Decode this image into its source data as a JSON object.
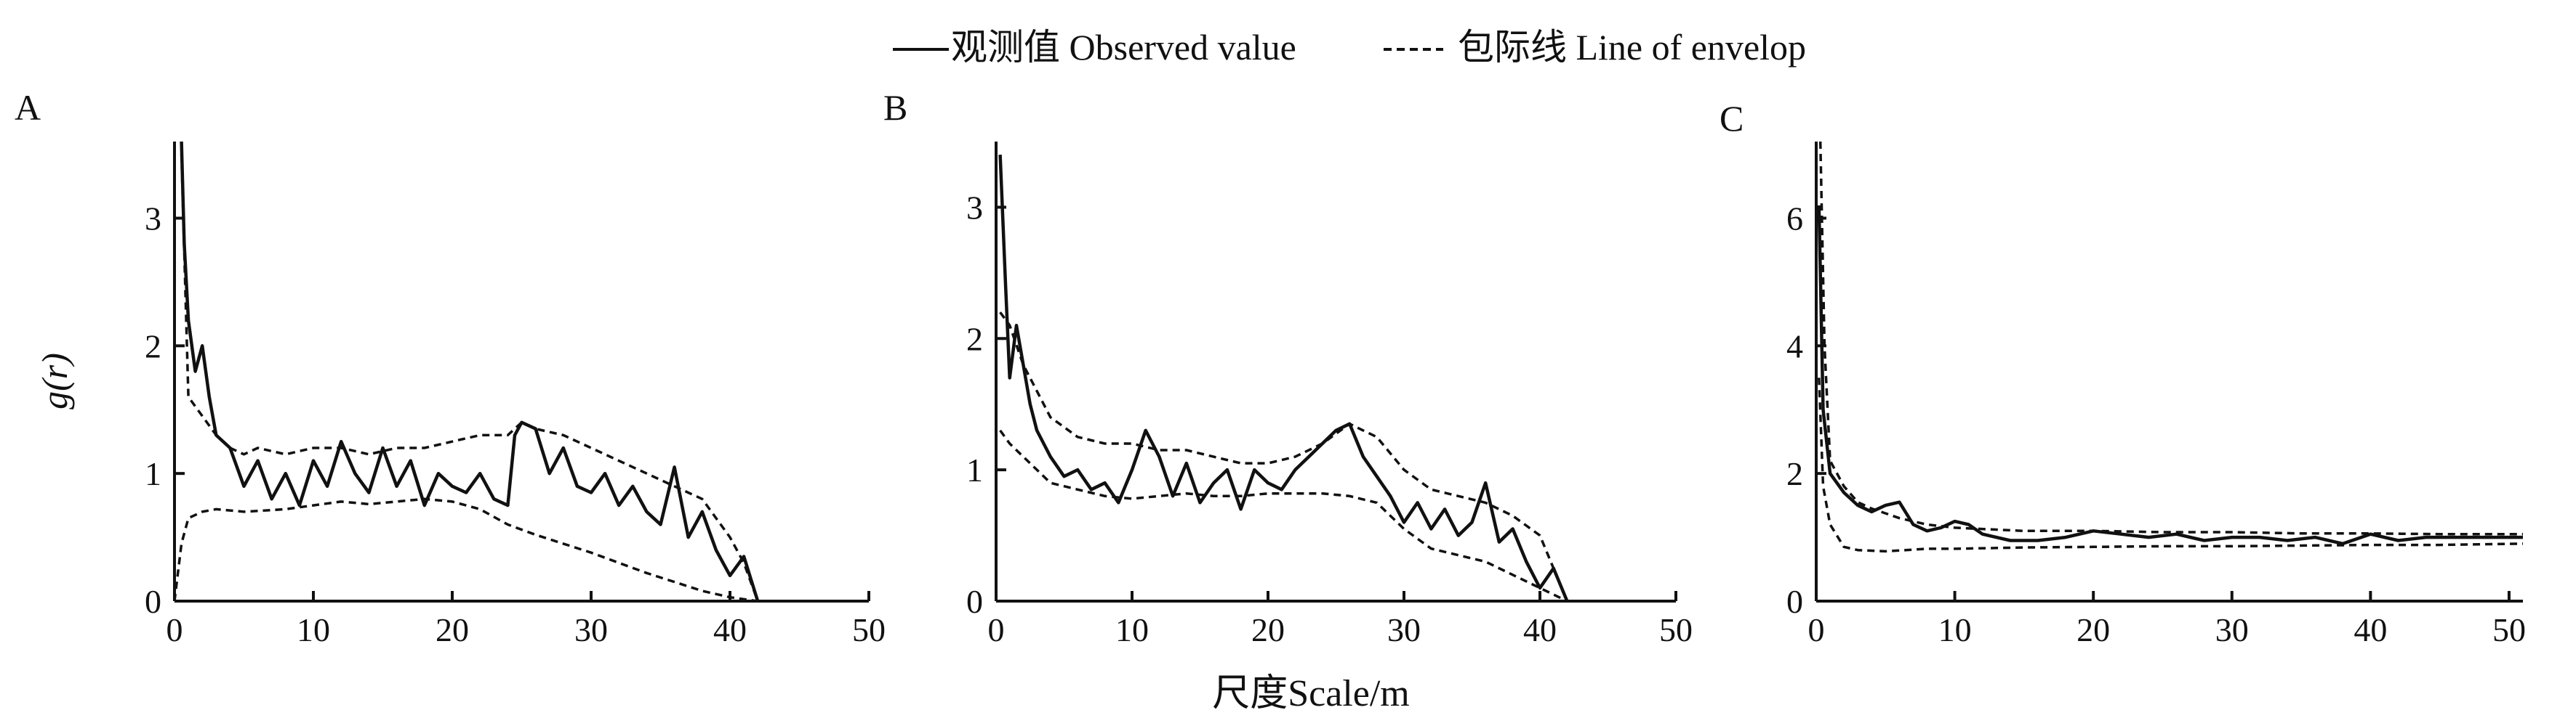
{
  "legend": {
    "observed_label": "观测值 Observed value",
    "envelope_label": "包际线 Line of envelop"
  },
  "ylabel": "g(r)",
  "xlabel": "尺度Scale/m",
  "colors": {
    "ink": "#111111",
    "background": "#ffffff"
  },
  "chart_data": [
    {
      "panel_label": "A",
      "type": "line",
      "xlim": [
        0,
        50
      ],
      "ylim": [
        0,
        3.6
      ],
      "xticks": [
        0,
        10,
        20,
        30,
        40,
        50
      ],
      "yticks": [
        0,
        1,
        2,
        3
      ],
      "series": [
        {
          "name": "观测值 Observed value",
          "style": "solid",
          "x": [
            0.5,
            0.7,
            1,
            1.5,
            2,
            2.5,
            3,
            4,
            5,
            6,
            7,
            8,
            9,
            10,
            11,
            12,
            13,
            14,
            15,
            16,
            17,
            18,
            19,
            20,
            21,
            22,
            23,
            24,
            24.5,
            25,
            26,
            27,
            28,
            29,
            30,
            31,
            32,
            33,
            34,
            35,
            36,
            37,
            38,
            39,
            40,
            41,
            42
          ],
          "y": [
            3.6,
            2.8,
            2.2,
            1.8,
            2.0,
            1.6,
            1.3,
            1.2,
            0.9,
            1.1,
            0.8,
            1.0,
            0.75,
            1.1,
            0.9,
            1.25,
            1.0,
            0.85,
            1.2,
            0.9,
            1.1,
            0.75,
            1.0,
            0.9,
            0.85,
            1.0,
            0.8,
            0.75,
            1.3,
            1.4,
            1.35,
            1.0,
            1.2,
            0.9,
            0.85,
            1.0,
            0.75,
            0.9,
            0.7,
            0.6,
            1.05,
            0.5,
            0.7,
            0.4,
            0.2,
            0.35,
            0.0
          ]
        },
        {
          "name": "包际线 Line of envelop",
          "style": "dashed",
          "x": [
            0.5,
            1,
            2,
            3,
            4,
            5,
            6,
            8,
            10,
            12,
            14,
            16,
            18,
            20,
            22,
            24,
            25,
            26,
            28,
            30,
            32,
            34,
            36,
            38,
            40,
            41,
            42
          ],
          "y": [
            3.5,
            1.6,
            1.45,
            1.3,
            1.2,
            1.15,
            1.2,
            1.15,
            1.2,
            1.2,
            1.15,
            1.2,
            1.2,
            1.25,
            1.3,
            1.3,
            1.4,
            1.35,
            1.3,
            1.2,
            1.1,
            1.0,
            0.9,
            0.8,
            0.5,
            0.3,
            0.0
          ]
        },
        {
          "name": "包际线 Line of envelop",
          "style": "dashed",
          "x": [
            0,
            0.5,
            1,
            2,
            3,
            5,
            8,
            10,
            12,
            14,
            16,
            18,
            20,
            22,
            24,
            26,
            28,
            30,
            32,
            34,
            36,
            38,
            40,
            42
          ],
          "y": [
            0.0,
            0.45,
            0.65,
            0.7,
            0.72,
            0.7,
            0.72,
            0.75,
            0.78,
            0.76,
            0.78,
            0.8,
            0.78,
            0.72,
            0.6,
            0.52,
            0.45,
            0.38,
            0.3,
            0.22,
            0.15,
            0.08,
            0.03,
            0.0
          ]
        }
      ]
    },
    {
      "panel_label": "B",
      "type": "line",
      "xlim": [
        0,
        50
      ],
      "ylim": [
        0,
        3.5
      ],
      "xticks": [
        0,
        10,
        20,
        30,
        40,
        50
      ],
      "yticks": [
        0,
        1,
        2,
        3
      ],
      "series": [
        {
          "name": "观测值 Observed value",
          "style": "solid",
          "x": [
            0.3,
            0.7,
            1,
            1.5,
            2,
            2.5,
            3,
            4,
            5,
            6,
            7,
            8,
            9,
            10,
            11,
            12,
            13,
            14,
            15,
            16,
            17,
            18,
            19,
            20,
            21,
            22,
            23,
            24,
            25,
            26,
            27,
            28,
            29,
            30,
            31,
            32,
            33,
            34,
            35,
            36,
            37,
            38,
            39,
            40,
            41,
            42
          ],
          "y": [
            3.4,
            2.4,
            1.7,
            2.1,
            1.8,
            1.5,
            1.3,
            1.1,
            0.95,
            1.0,
            0.85,
            0.9,
            0.75,
            1.0,
            1.3,
            1.1,
            0.8,
            1.05,
            0.75,
            0.9,
            1.0,
            0.7,
            1.0,
            0.9,
            0.85,
            1.0,
            1.1,
            1.2,
            1.3,
            1.35,
            1.1,
            0.95,
            0.8,
            0.6,
            0.75,
            0.55,
            0.7,
            0.5,
            0.6,
            0.9,
            0.45,
            0.55,
            0.3,
            0.1,
            0.25,
            0.0
          ]
        },
        {
          "name": "包际线 Line of envelop",
          "style": "dashed",
          "x": [
            0.3,
            1,
            2,
            3,
            4,
            6,
            8,
            10,
            12,
            14,
            16,
            18,
            20,
            22,
            24,
            26,
            27,
            28,
            30,
            32,
            34,
            36,
            38,
            40,
            42
          ],
          "y": [
            2.2,
            2.1,
            1.8,
            1.6,
            1.4,
            1.25,
            1.2,
            1.2,
            1.15,
            1.15,
            1.1,
            1.05,
            1.05,
            1.1,
            1.2,
            1.35,
            1.3,
            1.25,
            1.0,
            0.85,
            0.8,
            0.75,
            0.65,
            0.5,
            0.0
          ]
        },
        {
          "name": "包际线 Line of envelop",
          "style": "dashed",
          "x": [
            0.3,
            1,
            2,
            3,
            4,
            6,
            8,
            10,
            12,
            14,
            16,
            18,
            20,
            22,
            24,
            26,
            28,
            30,
            32,
            34,
            36,
            38,
            40,
            42
          ],
          "y": [
            1.3,
            1.2,
            1.1,
            1.0,
            0.9,
            0.85,
            0.8,
            0.78,
            0.8,
            0.82,
            0.8,
            0.8,
            0.82,
            0.82,
            0.82,
            0.8,
            0.75,
            0.55,
            0.4,
            0.35,
            0.3,
            0.2,
            0.1,
            0.0
          ]
        }
      ]
    },
    {
      "panel_label": "C",
      "type": "line",
      "xlim": [
        0,
        51
      ],
      "ylim": [
        0,
        7.2
      ],
      "xticks": [
        0,
        10,
        20,
        30,
        40,
        50
      ],
      "yticks": [
        0,
        2,
        4,
        6
      ],
      "series": [
        {
          "name": "观测值 Observed value",
          "style": "solid",
          "x": [
            0.2,
            0.5,
            1,
            2,
            3,
            4,
            5,
            6,
            7,
            8,
            9,
            10,
            11,
            12,
            14,
            16,
            18,
            20,
            22,
            24,
            26,
            28,
            30,
            32,
            34,
            36,
            38,
            40,
            42,
            44,
            46,
            48,
            50,
            51
          ],
          "y": [
            6.2,
            3.0,
            2.0,
            1.7,
            1.5,
            1.4,
            1.5,
            1.55,
            1.2,
            1.1,
            1.15,
            1.25,
            1.2,
            1.05,
            0.95,
            0.95,
            1.0,
            1.1,
            1.05,
            1.0,
            1.05,
            0.95,
            1.0,
            1.0,
            0.95,
            1.0,
            0.9,
            1.05,
            0.95,
            1.0,
            1.0,
            1.0,
            1.0,
            1.0
          ]
        },
        {
          "name": "包际线 Line of envelop",
          "style": "dashed",
          "x": [
            0.3,
            0.6,
            1,
            2,
            3,
            4,
            6,
            8,
            10,
            15,
            20,
            25,
            30,
            35,
            40,
            45,
            51
          ],
          "y": [
            7.2,
            4.0,
            2.2,
            1.8,
            1.55,
            1.45,
            1.3,
            1.2,
            1.15,
            1.1,
            1.1,
            1.08,
            1.08,
            1.06,
            1.06,
            1.05,
            1.05
          ]
        },
        {
          "name": "包际线 Line of envelop",
          "style": "dashed",
          "x": [
            0.2,
            0.5,
            1,
            2,
            3,
            5,
            8,
            10,
            15,
            20,
            25,
            30,
            35,
            40,
            45,
            51
          ],
          "y": [
            3.5,
            1.8,
            1.2,
            0.85,
            0.8,
            0.78,
            0.82,
            0.82,
            0.84,
            0.85,
            0.86,
            0.86,
            0.87,
            0.88,
            0.88,
            0.9
          ]
        }
      ]
    }
  ]
}
